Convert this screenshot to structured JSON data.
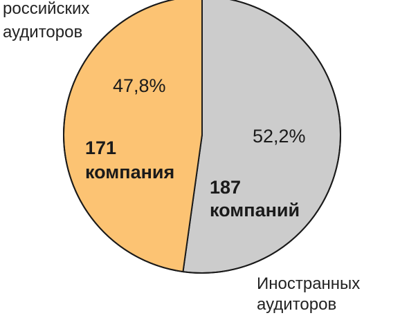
{
  "chart_data": {
    "type": "pie",
    "slices": [
      {
        "label_lines": [
          "Иностранных",
          "аудиторов"
        ],
        "value": 52.2,
        "value_label": "52,2%",
        "count_lines": [
          "187",
          "компаний"
        ],
        "color": "#cccccc"
      },
      {
        "label_lines": [
          "российских",
          "аудиторов"
        ],
        "value": 47.8,
        "value_label": "47,8%",
        "count_lines": [
          "171",
          "компания"
        ],
        "color": "#fcc373"
      }
    ],
    "start_angle_deg": 0,
    "direction": "clockwise",
    "outline_color": "#1a1a1a"
  }
}
